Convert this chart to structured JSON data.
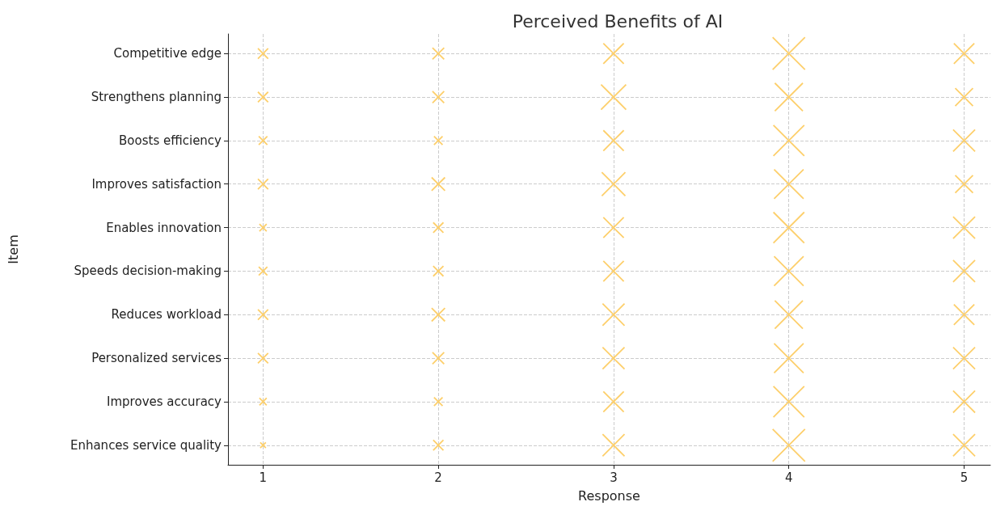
{
  "chart_data": {
    "type": "bubble",
    "title": "Perceived Benefits of AI",
    "xlabel": "Response",
    "ylabel": "Item",
    "orientation": "horizontal",
    "categories": [
      "Competitive edge",
      "Strengthens planning",
      "Boosts efficiency",
      "Improves satisfaction",
      "Enables innovation",
      "Speeds decision-making",
      "Reduces workload",
      "Personalized services",
      "Improves accuracy",
      "Enhances service quality"
    ],
    "series": [
      {
        "color": "#fdcf6b",
        "values": [
          1,
          1,
          1,
          1,
          1,
          1,
          1,
          1,
          1,
          1
        ],
        "sizes": [
          0.1,
          0.1,
          0.07,
          0.1,
          0.05,
          0.07,
          0.1,
          0.1,
          0.05,
          0.03
        ]
      },
      {
        "color": "#fdcf6b",
        "values": [
          2,
          2,
          2,
          2,
          2,
          2,
          2,
          2,
          2,
          2
        ],
        "sizes": [
          0.13,
          0.13,
          0.07,
          0.17,
          0.1,
          0.1,
          0.17,
          0.13,
          0.07,
          0.1
        ]
      },
      {
        "color": "#fdcf6b",
        "values": [
          3,
          3,
          3,
          3,
          3,
          3,
          3,
          3,
          3,
          3
        ],
        "sizes": [
          0.4,
          0.6,
          0.4,
          0.53,
          0.4,
          0.4,
          0.46,
          0.46,
          0.4,
          0.46
        ]
      },
      {
        "color": "#fdcf6b",
        "values": [
          4,
          4,
          4,
          4,
          4,
          4,
          4,
          4,
          4,
          4
        ],
        "sizes": [
          1,
          0.75,
          0.91,
          0.83,
          0.91,
          0.83,
          0.75,
          0.83,
          0.91,
          1
        ]
      },
      {
        "color": "#fdcf6b",
        "values": [
          5,
          5,
          5,
          5,
          5,
          5,
          5,
          5,
          5,
          5
        ],
        "sizes": [
          0.4,
          0.3,
          0.46,
          0.3,
          0.46,
          0.46,
          0.4,
          0.46,
          0.46,
          0.46
        ]
      }
    ],
    "xlim": [
      0.8,
      5.15
    ],
    "xticks": [
      1,
      2,
      3,
      4,
      5
    ],
    "grid": true,
    "marker": "cross"
  }
}
